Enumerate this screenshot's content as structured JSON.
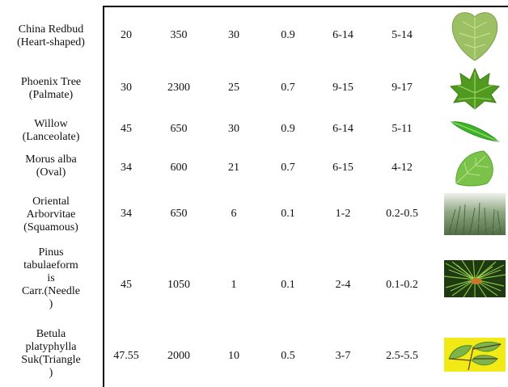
{
  "rows": [
    {
      "name_lines": [
        "China Redbud",
        "(Heart-shaped)"
      ],
      "values": [
        "20",
        "350",
        "30",
        "0.9",
        "6-14",
        "5-14"
      ],
      "leaf": "heart-leaf-icon"
    },
    {
      "name_lines": [
        "Phoenix Tree",
        "(Palmate)"
      ],
      "values": [
        "30",
        "2300",
        "25",
        "0.7",
        "9-15",
        "9-17"
      ],
      "leaf": "palmate-leaf-icon"
    },
    {
      "name_lines": [
        "Willow",
        "(Lanceolate)"
      ],
      "values": [
        "45",
        "650",
        "30",
        "0.9",
        "6-14",
        "5-11"
      ],
      "leaf": "lanceolate-leaf-icon"
    },
    {
      "name_lines": [
        "Morus alba",
        "(Oval)"
      ],
      "values": [
        "34",
        "600",
        "21",
        "0.7",
        "6-15",
        "4-12"
      ],
      "leaf": "oval-leaf-icon"
    },
    {
      "name_lines": [
        "Oriental",
        "Arborvitae",
        "(Squamous)"
      ],
      "values": [
        "34",
        "650",
        "6",
        "0.1",
        "1-2",
        "0.2-0.5"
      ],
      "leaf": "squamous-leaf-icon"
    },
    {
      "name_lines": [
        "Pinus",
        "tabulaeform",
        "is",
        "Carr.(Needle",
        ")"
      ],
      "values": [
        "45",
        "1050",
        "1",
        "0.1",
        "2-4",
        "0.1-0.2"
      ],
      "leaf": "needle-leaf-icon"
    },
    {
      "name_lines": [
        "Betula",
        "platyphylla",
        "Suk(Triangle",
        ")"
      ],
      "values": [
        "47.55",
        "2000",
        "10",
        "0.5",
        "3-7",
        "2.5-5.5"
      ],
      "leaf": "triangle-leaf-icon"
    }
  ],
  "colors": {
    "rule": "#000000",
    "leaf_green": "#8db857",
    "birch_bg": "#f2ea17"
  }
}
